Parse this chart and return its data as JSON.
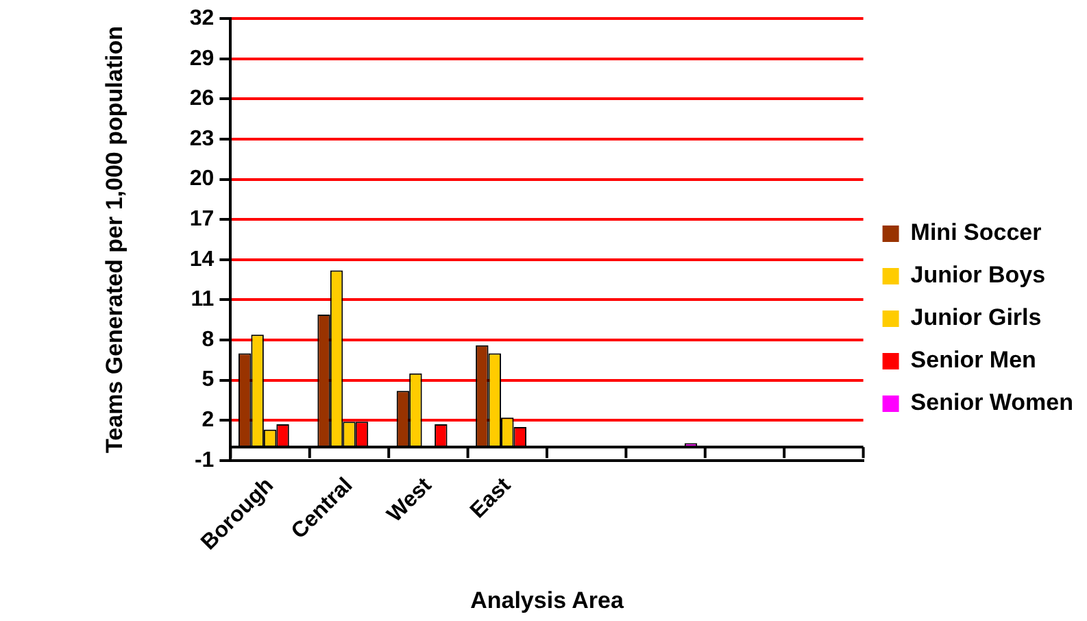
{
  "chart_data": {
    "type": "bar",
    "xlabel": "Analysis Area",
    "ylabel": "Teams Generated per 1,000 population",
    "categories": [
      "Borough",
      "Central",
      "West",
      "East",
      null,
      null,
      null,
      null
    ],
    "series": [
      {
        "name": "Mini Soccer",
        "color": "#993300",
        "values": [
          7.0,
          9.9,
          4.2,
          7.6,
          null,
          null,
          null,
          null
        ]
      },
      {
        "name": "Junior Boys",
        "color": "#ffcc00",
        "values": [
          8.4,
          13.2,
          5.5,
          7.0,
          null,
          null,
          null,
          null
        ]
      },
      {
        "name": "Junior Girls",
        "color": "#ffcc00",
        "values": [
          1.3,
          1.9,
          null,
          2.2,
          null,
          null,
          null,
          null
        ]
      },
      {
        "name": "Senior Men",
        "color": "#ff0000",
        "values": [
          1.7,
          1.9,
          1.7,
          1.5,
          null,
          null,
          null,
          null
        ]
      },
      {
        "name": "Senior Women",
        "color": "#ff00ff",
        "values": [
          null,
          null,
          null,
          null,
          null,
          0.3,
          null,
          null
        ]
      }
    ],
    "ylim": [
      -1,
      32
    ],
    "yticks": [
      -1,
      2,
      5,
      8,
      11,
      14,
      17,
      20,
      23,
      26,
      29,
      32
    ],
    "grid": "y",
    "legend": "right"
  }
}
